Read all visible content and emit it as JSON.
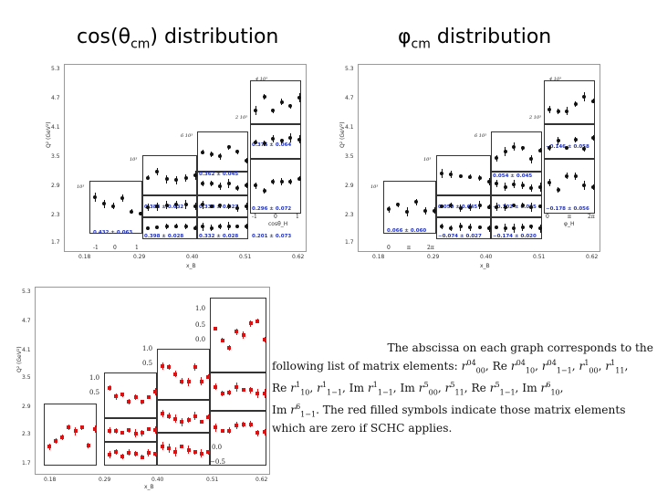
{
  "titles": {
    "left_prefix": "cos(θ",
    "left_sub": "cm",
    "left_suffix": ") distribution",
    "right_prefix": "φ",
    "right_sub": "cm",
    "right_suffix": " distribution"
  },
  "top_left_plot": {
    "y_axis_ticks": [
      "5.3",
      "4.7",
      "4.1",
      "3.5",
      "2.9",
      "2.3",
      "1.7"
    ],
    "y_axis_label": "Q² (GeV²)",
    "x_axis_ticks": [
      "0.18",
      "0.29",
      "0.40",
      "0.51",
      "0.62"
    ],
    "x_axis_label": "x_B",
    "scale_labels": [
      "4 10³",
      "2 10³",
      "6 10³",
      "10³",
      "10³"
    ],
    "readouts": [
      "0.375 ± 0.064",
      "0.362 ± 0.045",
      "0.383 ± 0.032",
      "0.330 ± 0.023",
      "0.296 ± 0.072",
      "0.432 ± 0.063",
      "0.398 ± 0.028",
      "0.332 ± 0.028",
      "0.201 ± 0.073"
    ],
    "cos_axis": "cosθ_H",
    "cos_ticks": [
      "-1",
      "0",
      "1"
    ]
  },
  "top_right_plot": {
    "y_axis_ticks": [
      "5.3",
      "4.7",
      "4.1",
      "3.5",
      "2.9",
      "2.3",
      "1.7"
    ],
    "y_axis_label": "Q² (GeV²)",
    "x_axis_ticks": [
      "0.18",
      "0.29",
      "0.40",
      "0.51",
      "0.62"
    ],
    "x_axis_label": "x_B",
    "scale_labels": [
      "4 10³",
      "2 10³",
      "6 10³",
      "10³",
      "10³"
    ],
    "readouts": [
      "−0.146 ± 0.058",
      "0.054 ± 0.045",
      "0.050 ± 0.045",
      "−0.102 ± 0.025",
      "−0.178 ± 0.056",
      "0.066 ± 0.060",
      "−0.074 ± 0.027",
      "−0.174 ± 0.020"
    ],
    "phi_axis": "φ_H",
    "phi_ticks": [
      "0",
      "π",
      "2π"
    ]
  },
  "bottom_left_plot": {
    "y_axis_ticks": [
      "5.3",
      "4.7",
      "4.1",
      "3.5",
      "2.9",
      "2.3",
      "1.7"
    ],
    "y_axis_label": "Q² (GeV²)",
    "x_axis_ticks": [
      "0.18",
      "0.29",
      "0.40",
      "0.51",
      "0.62"
    ],
    "x_axis_label": "x_B",
    "value_ticks": [
      "1.0",
      "0.5",
      "0.0",
      "1.0",
      "0.5",
      "1.0",
      "0.5",
      "0.0",
      "−0.5"
    ]
  },
  "caption": {
    "line1": "The abscissa on each graph corresponds to the",
    "line2_a": "following list of matrix elements: ",
    "line2_b": ", Re ",
    "line2_c": ", ",
    "line2_d": ", ",
    "line2_e": ", ",
    "line3_a": "Re ",
    "line3_b": ", ",
    "line3_c": ", Im ",
    "line3_d": ", Im ",
    "line3_e": ", ",
    "line3_f": ", Re ",
    "line3_g": ", Im ",
    "line4_a": "Im ",
    "line4_b": ". The red filled symbols indicate those matrix elements",
    "line5": "which are zero if SCHC applies.",
    "r": "r",
    "sup_04": "04",
    "sup_1": "1",
    "sup_5": "5",
    "sup_6": "6",
    "sub_00": "00",
    "sub_10": "10",
    "sub_1m1": "1−1",
    "sub_11": "11"
  }
}
